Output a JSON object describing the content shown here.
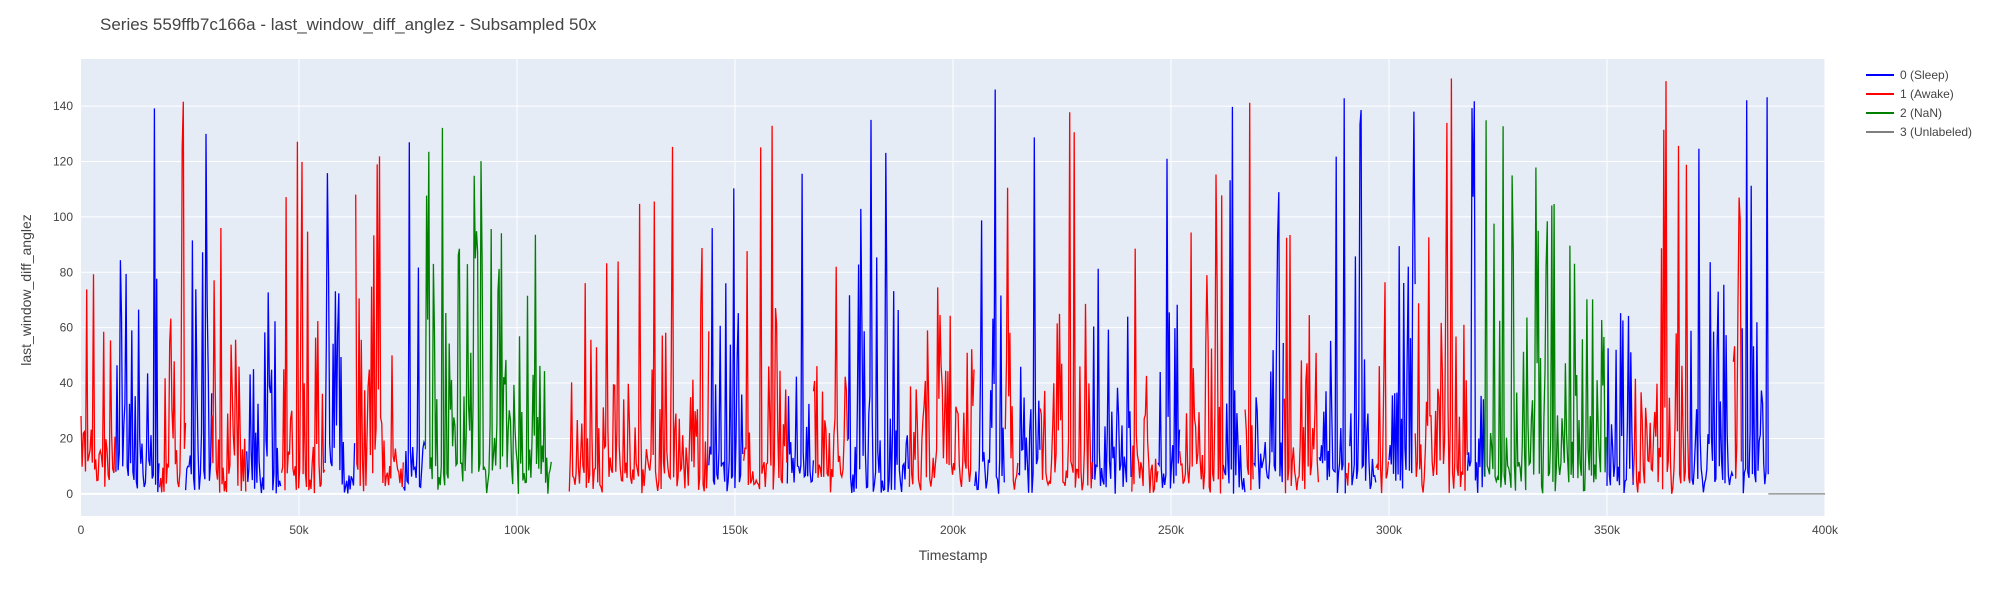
{
  "chart_data": {
    "type": "line",
    "title": "Series 559ffb7c166a - last_window_diff_anglez - Subsampled 50x",
    "xlabel": "Timestamp",
    "ylabel": "last_window_diff_anglez",
    "xlim": [
      0,
      400000
    ],
    "ylim": [
      -8,
      157
    ],
    "x_ticks": [
      0,
      50000,
      100000,
      150000,
      200000,
      250000,
      300000,
      350000,
      400000
    ],
    "x_tick_labels": [
      "0",
      "50k",
      "100k",
      "150k",
      "200k",
      "250k",
      "300k",
      "350k",
      "400k"
    ],
    "y_ticks": [
      0,
      20,
      40,
      60,
      80,
      100,
      120,
      140
    ],
    "y_tick_labels": [
      "0",
      "20",
      "40",
      "60",
      "80",
      "100",
      "120",
      "140"
    ],
    "grid": true,
    "legend_position": "top-right",
    "series": [
      {
        "name": "0 (Sleep)",
        "color": "#0000ff",
        "segments": [
          [
            8000,
            18000
          ],
          [
            24000,
            30000
          ],
          [
            38000,
            46000
          ],
          [
            56000,
            63000
          ],
          [
            74000,
            79000
          ],
          [
            144000,
            152000
          ],
          [
            162000,
            168000
          ],
          [
            176000,
            190000
          ],
          [
            205000,
            212000
          ],
          [
            215000,
            220000
          ],
          [
            232000,
            241000
          ],
          [
            247000,
            252000
          ],
          [
            262000,
            267000
          ],
          [
            269000,
            276000
          ],
          [
            284000,
            290000
          ],
          [
            291000,
            297000
          ],
          [
            300000,
            306000
          ],
          [
            318000,
            322000
          ],
          [
            350000,
            356000
          ],
          [
            369000,
            379000
          ],
          [
            381000,
            387000
          ]
        ],
        "peak": 147
      },
      {
        "name": "1 (Awake)",
        "color": "#ff0000",
        "segments": [
          [
            0,
            8000
          ],
          [
            18000,
            24000
          ],
          [
            30000,
            38000
          ],
          [
            46000,
            56000
          ],
          [
            63000,
            74000
          ],
          [
            112000,
            144000
          ],
          [
            152000,
            162000
          ],
          [
            168000,
            176000
          ],
          [
            190000,
            205000
          ],
          [
            212000,
            215000
          ],
          [
            220000,
            232000
          ],
          [
            241000,
            247000
          ],
          [
            252000,
            262000
          ],
          [
            267000,
            269000
          ],
          [
            276000,
            284000
          ],
          [
            290000,
            291000
          ],
          [
            297000,
            300000
          ],
          [
            306000,
            318000
          ],
          [
            356000,
            369000
          ],
          [
            379000,
            381000
          ]
        ],
        "peak": 150
      },
      {
        "name": "2 (NaN)",
        "color": "#008000",
        "segments": [
          [
            79000,
            108000
          ],
          [
            322000,
            350000
          ]
        ],
        "peak": 135
      },
      {
        "name": "3 (Unlabeled)",
        "color": "#808080",
        "segments": [
          [
            387000,
            400000
          ]
        ],
        "values": [
          0,
          0
        ]
      }
    ]
  }
}
